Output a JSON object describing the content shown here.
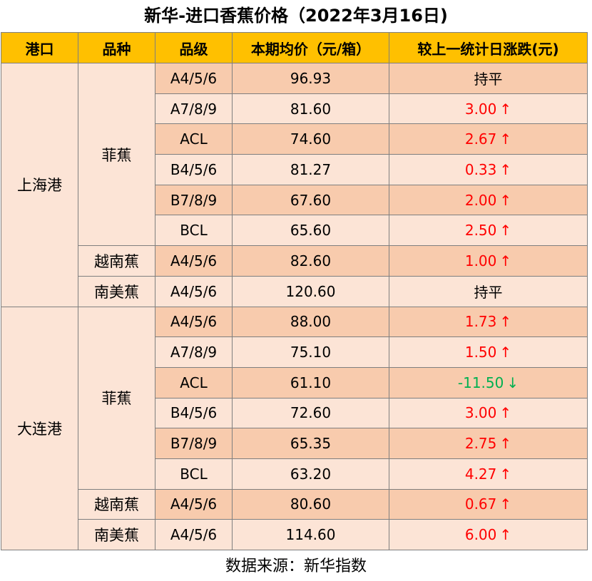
{
  "title": "新华-进口香蕉价格（2022年3月16日)",
  "headers": [
    "港口",
    "品种",
    "品级",
    "本期均价（元/箱）",
    "较上一统计日涨跌(元)"
  ],
  "ports": [
    {
      "name": "上海港",
      "varieties": [
        {
          "name": "菲蕉",
          "rows": [
            {
              "grade": "A4/5/6",
              "price": "96.93",
              "change": "持平",
              "dir": "flat",
              "arrow": ""
            },
            {
              "grade": "A7/8/9",
              "price": "81.60",
              "change": "3.00",
              "dir": "up",
              "arrow": "↑"
            },
            {
              "grade": "ACL",
              "price": "74.60",
              "change": "2.67",
              "dir": "up",
              "arrow": "↑"
            },
            {
              "grade": "B4/5/6",
              "price": "81.27",
              "change": "0.33",
              "dir": "up",
              "arrow": "↑"
            },
            {
              "grade": "B7/8/9",
              "price": "67.60",
              "change": "2.00",
              "dir": "up",
              "arrow": "↑"
            },
            {
              "grade": "BCL",
              "price": "65.60",
              "change": "2.50",
              "dir": "up",
              "arrow": "↑"
            }
          ]
        },
        {
          "name": "越南蕉",
          "rows": [
            {
              "grade": "A4/5/6",
              "price": "82.60",
              "change": "1.00",
              "dir": "up",
              "arrow": "↑"
            }
          ]
        },
        {
          "name": "南美蕉",
          "rows": [
            {
              "grade": "A4/5/6",
              "price": "120.60",
              "change": "持平",
              "dir": "flat",
              "arrow": ""
            }
          ]
        }
      ]
    },
    {
      "name": "大连港",
      "varieties": [
        {
          "name": "菲蕉",
          "rows": [
            {
              "grade": "A4/5/6",
              "price": "88.00",
              "change": "1.73",
              "dir": "up",
              "arrow": "↑"
            },
            {
              "grade": "A7/8/9",
              "price": "75.10",
              "change": "1.50",
              "dir": "up",
              "arrow": "↑"
            },
            {
              "grade": "ACL",
              "price": "61.10",
              "change": "-11.50",
              "dir": "down",
              "arrow": "↓"
            },
            {
              "grade": "B4/5/6",
              "price": "72.60",
              "change": "3.00",
              "dir": "up",
              "arrow": "↑"
            },
            {
              "grade": "B7/8/9",
              "price": "65.35",
              "change": "2.75",
              "dir": "up",
              "arrow": "↑"
            },
            {
              "grade": "BCL",
              "price": "63.20",
              "change": "4.27",
              "dir": "up",
              "arrow": "↑"
            }
          ]
        },
        {
          "name": "越南蕉",
          "rows": [
            {
              "grade": "A4/5/6",
              "price": "80.60",
              "change": "0.67",
              "dir": "up",
              "arrow": "↑"
            }
          ]
        },
        {
          "name": "南美蕉",
          "rows": [
            {
              "grade": "A4/5/6",
              "price": "114.60",
              "change": "6.00",
              "dir": "up",
              "arrow": "↑"
            }
          ]
        }
      ]
    }
  ],
  "footer": "数据来源：新华指数",
  "colors": {
    "header_bg": "#ffc000",
    "row_dark": "#f8cbad",
    "row_light": "#fce4d6",
    "up": "#ff0000",
    "down": "#00b050"
  }
}
